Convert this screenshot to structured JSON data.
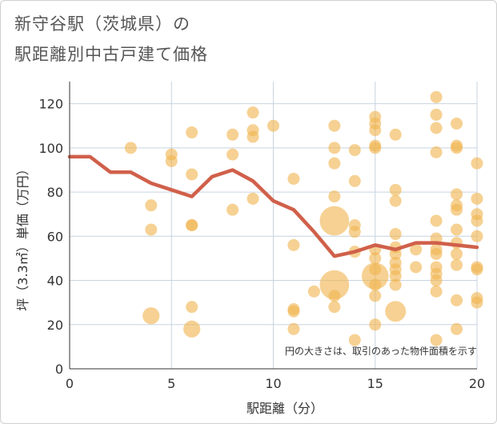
{
  "title_line1": "新守谷駅（茨城県）の",
  "title_line2": "駅距離別中古戸建て価格",
  "colors": {
    "bubble": "#f0b550",
    "line": "#d0604a",
    "grid": "#c8d4e0",
    "axis": "#333333"
  },
  "chart_data": {
    "type": "scatter",
    "xlabel": "駅距離（分）",
    "ylabel": "坪（3.3㎡）単価（万円）",
    "xlim": [
      0,
      20
    ],
    "ylim": [
      0,
      130
    ],
    "xticks": [
      "0",
      "5",
      "10",
      "15",
      "20"
    ],
    "yticks": [
      "0",
      "20",
      "40",
      "60",
      "80",
      "100",
      "120"
    ],
    "annotation": "円の大きさは、取引のあった物件面積を示す",
    "bubbles": [
      {
        "x": 3,
        "y": 100,
        "s": 1
      },
      {
        "x": 4,
        "y": 74,
        "s": 1
      },
      {
        "x": 4,
        "y": 63,
        "s": 1
      },
      {
        "x": 4,
        "y": 24,
        "s": 2
      },
      {
        "x": 5,
        "y": 97,
        "s": 1
      },
      {
        "x": 5,
        "y": 94,
        "s": 1
      },
      {
        "x": 6,
        "y": 107,
        "s": 1
      },
      {
        "x": 6,
        "y": 88,
        "s": 1
      },
      {
        "x": 6,
        "y": 65,
        "s": 1
      },
      {
        "x": 6,
        "y": 65,
        "s": 1
      },
      {
        "x": 6,
        "y": 28,
        "s": 1
      },
      {
        "x": 6,
        "y": 18,
        "s": 2
      },
      {
        "x": 8,
        "y": 106,
        "s": 1
      },
      {
        "x": 8,
        "y": 97,
        "s": 1
      },
      {
        "x": 8,
        "y": 72,
        "s": 1
      },
      {
        "x": 9,
        "y": 116,
        "s": 1
      },
      {
        "x": 9,
        "y": 108,
        "s": 1
      },
      {
        "x": 9,
        "y": 105,
        "s": 1
      },
      {
        "x": 9,
        "y": 77,
        "s": 1
      },
      {
        "x": 10,
        "y": 110,
        "s": 1
      },
      {
        "x": 11,
        "y": 86,
        "s": 1
      },
      {
        "x": 11,
        "y": 56,
        "s": 1
      },
      {
        "x": 11,
        "y": 27,
        "s": 1
      },
      {
        "x": 11,
        "y": 26,
        "s": 1
      },
      {
        "x": 11,
        "y": 18,
        "s": 1
      },
      {
        "x": 12,
        "y": 35,
        "s": 1
      },
      {
        "x": 13,
        "y": 110,
        "s": 1
      },
      {
        "x": 13,
        "y": 100,
        "s": 1
      },
      {
        "x": 13,
        "y": 93,
        "s": 1
      },
      {
        "x": 13,
        "y": 78,
        "s": 1
      },
      {
        "x": 13,
        "y": 67,
        "s": 6
      },
      {
        "x": 13,
        "y": 38,
        "s": 6
      },
      {
        "x": 13,
        "y": 33,
        "s": 1
      },
      {
        "x": 13,
        "y": 28,
        "s": 1
      },
      {
        "x": 14,
        "y": 99,
        "s": 1
      },
      {
        "x": 14,
        "y": 85,
        "s": 1
      },
      {
        "x": 14,
        "y": 65,
        "s": 1
      },
      {
        "x": 14,
        "y": 62,
        "s": 1
      },
      {
        "x": 14,
        "y": 53,
        "s": 1
      },
      {
        "x": 14,
        "y": 13,
        "s": 1
      },
      {
        "x": 15,
        "y": 114,
        "s": 1
      },
      {
        "x": 15,
        "y": 111,
        "s": 1
      },
      {
        "x": 15,
        "y": 108,
        "s": 1
      },
      {
        "x": 15,
        "y": 101,
        "s": 1
      },
      {
        "x": 15,
        "y": 100,
        "s": 1
      },
      {
        "x": 15,
        "y": 54,
        "s": 1
      },
      {
        "x": 15,
        "y": 50,
        "s": 1
      },
      {
        "x": 15,
        "y": 45,
        "s": 1
      },
      {
        "x": 15,
        "y": 42,
        "s": 5
      },
      {
        "x": 15,
        "y": 38,
        "s": 1
      },
      {
        "x": 15,
        "y": 33,
        "s": 1
      },
      {
        "x": 15,
        "y": 20,
        "s": 1
      },
      {
        "x": 16,
        "y": 106,
        "s": 1
      },
      {
        "x": 16,
        "y": 81,
        "s": 1
      },
      {
        "x": 16,
        "y": 76,
        "s": 1
      },
      {
        "x": 16,
        "y": 61,
        "s": 1
      },
      {
        "x": 16,
        "y": 55,
        "s": 1
      },
      {
        "x": 16,
        "y": 52,
        "s": 1
      },
      {
        "x": 16,
        "y": 48,
        "s": 1
      },
      {
        "x": 16,
        "y": 45,
        "s": 1
      },
      {
        "x": 16,
        "y": 42,
        "s": 1
      },
      {
        "x": 16,
        "y": 38,
        "s": 1
      },
      {
        "x": 16,
        "y": 26,
        "s": 3
      },
      {
        "x": 17,
        "y": 54,
        "s": 1
      },
      {
        "x": 17,
        "y": 46,
        "s": 1
      },
      {
        "x": 18,
        "y": 123,
        "s": 1
      },
      {
        "x": 18,
        "y": 115,
        "s": 1
      },
      {
        "x": 18,
        "y": 109,
        "s": 1
      },
      {
        "x": 18,
        "y": 98,
        "s": 1
      },
      {
        "x": 18,
        "y": 67,
        "s": 1
      },
      {
        "x": 18,
        "y": 59,
        "s": 1
      },
      {
        "x": 18,
        "y": 54,
        "s": 1
      },
      {
        "x": 18,
        "y": 52,
        "s": 1
      },
      {
        "x": 18,
        "y": 46,
        "s": 1
      },
      {
        "x": 18,
        "y": 43,
        "s": 1
      },
      {
        "x": 18,
        "y": 40,
        "s": 1
      },
      {
        "x": 18,
        "y": 35,
        "s": 1
      },
      {
        "x": 18,
        "y": 13,
        "s": 1
      },
      {
        "x": 19,
        "y": 111,
        "s": 1
      },
      {
        "x": 19,
        "y": 101,
        "s": 1
      },
      {
        "x": 19,
        "y": 100,
        "s": 1
      },
      {
        "x": 19,
        "y": 79,
        "s": 1
      },
      {
        "x": 19,
        "y": 74,
        "s": 1
      },
      {
        "x": 19,
        "y": 72,
        "s": 1
      },
      {
        "x": 19,
        "y": 63,
        "s": 1
      },
      {
        "x": 19,
        "y": 57,
        "s": 1
      },
      {
        "x": 19,
        "y": 52,
        "s": 1
      },
      {
        "x": 19,
        "y": 47,
        "s": 1
      },
      {
        "x": 19,
        "y": 31,
        "s": 1
      },
      {
        "x": 19,
        "y": 18,
        "s": 1
      },
      {
        "x": 20,
        "y": 93,
        "s": 1
      },
      {
        "x": 20,
        "y": 77,
        "s": 1
      },
      {
        "x": 20,
        "y": 70,
        "s": 1
      },
      {
        "x": 20,
        "y": 67,
        "s": 1
      },
      {
        "x": 20,
        "y": 60,
        "s": 1
      },
      {
        "x": 20,
        "y": 46,
        "s": 1
      },
      {
        "x": 20,
        "y": 45,
        "s": 1
      },
      {
        "x": 20,
        "y": 32,
        "s": 1
      },
      {
        "x": 20,
        "y": 30,
        "s": 1
      }
    ],
    "line": {
      "x": [
        0,
        1,
        2,
        3,
        4,
        5,
        6,
        7,
        8,
        9,
        10,
        11,
        12,
        13,
        14,
        15,
        16,
        17,
        18,
        19,
        20
      ],
      "y": [
        96,
        96,
        89,
        89,
        84,
        81,
        78,
        87,
        90,
        85,
        76,
        72,
        62,
        51,
        53,
        56,
        54,
        57,
        57,
        56,
        55
      ]
    }
  }
}
